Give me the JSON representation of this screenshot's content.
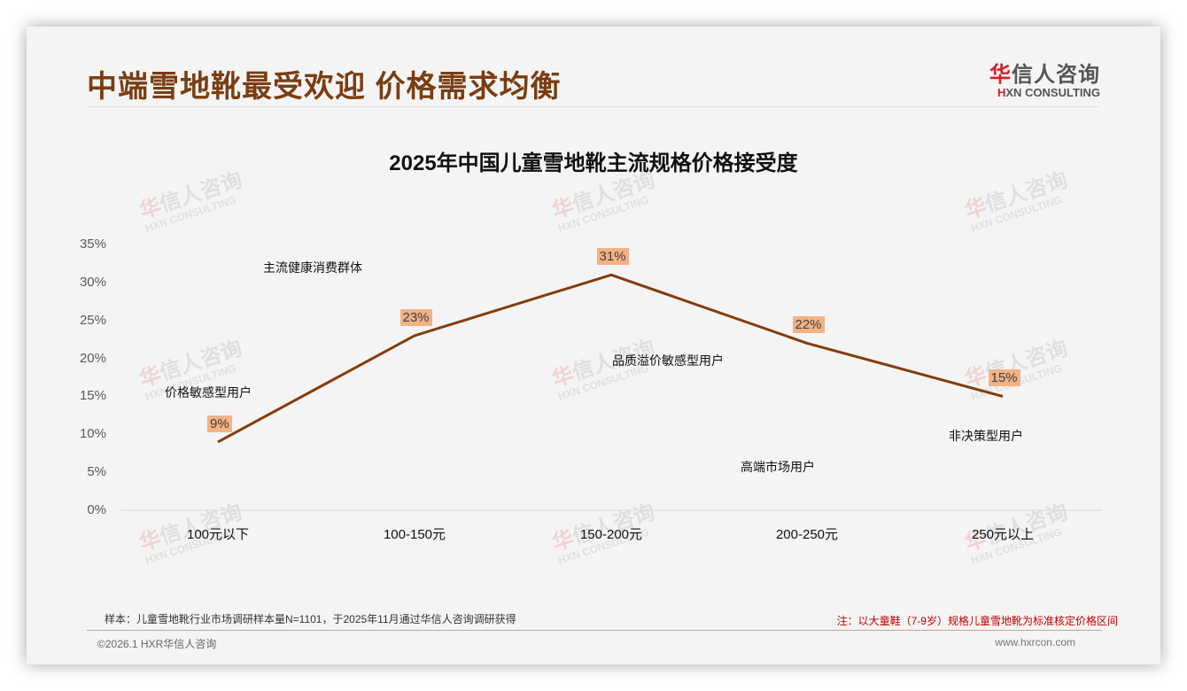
{
  "header": {
    "title": "中端雪地靴最受欢迎 价格需求均衡",
    "logo_cn_first": "华",
    "logo_cn_rest": "信人咨询",
    "logo_en_first": "H",
    "logo_en_rest": "XN CONSULTING"
  },
  "watermark": {
    "cn": "华信人咨询",
    "en": "HXN CONSULTING"
  },
  "colors": {
    "title": "#7a3d12",
    "line": "#843c0c",
    "label_bg": "#f4b183",
    "note": "#c00000",
    "brand_red": "#d0202a"
  },
  "chart_data": {
    "type": "line",
    "title": "2025年中国儿童雪地靴主流规格价格接受度",
    "xlabel": "",
    "ylabel": "",
    "categories": [
      "100元以下",
      "100-150元",
      "150-200元",
      "200-250元",
      "250元以上"
    ],
    "series": [
      {
        "name": "价格接受度",
        "values": [
          9,
          23,
          31,
          22,
          15
        ]
      }
    ],
    "value_labels": [
      "9%",
      "23%",
      "31%",
      "22%",
      "15%"
    ],
    "yticks": [
      "0%",
      "5%",
      "10%",
      "15%",
      "20%",
      "25%",
      "30%",
      "35%"
    ],
    "ylim": [
      0,
      35
    ],
    "grid": false,
    "legend": "none",
    "annotations": [
      "价格敏感型用户",
      "主流健康消费群体",
      "品质溢价敏感型用户",
      "高端市场用户",
      "非决策型用户"
    ]
  },
  "footer": {
    "sample": "样本：儿童雪地靴行业市场调研样本量N=1101，于2025年11月通过华信人咨询调研获得",
    "note": "注：以大童鞋（7-9岁）规格儿童雪地靴为标准核定价格区间",
    "copyright": "©2026.1 HXR华信人咨询",
    "website": "www.hxrcon.com"
  }
}
